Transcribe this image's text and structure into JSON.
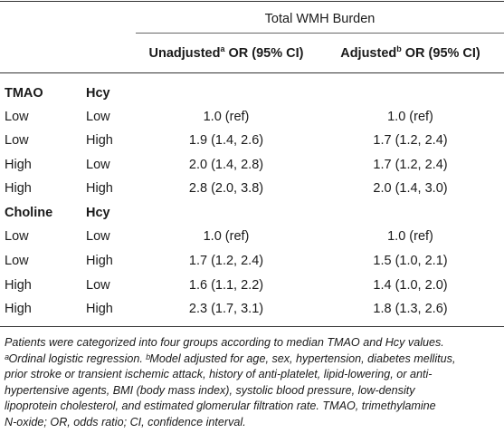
{
  "table": {
    "group_header": "Total WMH Burden",
    "col_unadjusted": {
      "label": "Unadjusted",
      "sup": "a",
      "rest": " OR (95% CI)"
    },
    "col_adjusted": {
      "label": "Adjusted",
      "sup": "b",
      "rest": " OR (95% CI)"
    },
    "sections": [
      {
        "var1": "TMAO",
        "var2": "Hcy",
        "rows": [
          {
            "v1": "Low",
            "v2": "Low",
            "unadj": "1.0 (ref)",
            "adj": "1.0 (ref)"
          },
          {
            "v1": "Low",
            "v2": "High",
            "unadj": "1.9 (1.4, 2.6)",
            "adj": "1.7 (1.2, 2.4)"
          },
          {
            "v1": "High",
            "v2": "Low",
            "unadj": "2.0 (1.4, 2.8)",
            "adj": "1.7 (1.2, 2.4)"
          },
          {
            "v1": "High",
            "v2": "High",
            "unadj": "2.8 (2.0, 3.8)",
            "adj": "2.0 (1.4, 3.0)"
          }
        ]
      },
      {
        "var1": "Choline",
        "var2": "Hcy",
        "rows": [
          {
            "v1": "Low",
            "v2": "Low",
            "unadj": "1.0 (ref)",
            "adj": "1.0 (ref)"
          },
          {
            "v1": "Low",
            "v2": "High",
            "unadj": "1.7 (1.2, 2.4)",
            "adj": "1.5 (1.0, 2.1)"
          },
          {
            "v1": "High",
            "v2": "Low",
            "unadj": "1.6 (1.1, 2.2)",
            "adj": "1.4 (1.0, 2.0)"
          },
          {
            "v1": "High",
            "v2": "High",
            "unadj": "2.3 (1.7, 3.1)",
            "adj": "1.8 (1.3, 2.6)"
          }
        ]
      }
    ]
  },
  "footnote": {
    "text": "Patients were categorized into four groups according to median TMAO and Hcy values.\nᵃOrdinal logistic regression. ᵇModel adjusted for age, sex, hypertension, diabetes mellitus,\nprior stroke or transient ischemic attack, history of anti-platelet, lipid-lowering, or anti-\nhypertensive agents, BMI (body mass index), systolic blood pressure, low-density\nlipoprotein cholesterol, and estimated glomerular filtration rate. TMAO, trimethylamine\nN-oxide; OR, odds ratio; CI, confidence interval."
  }
}
